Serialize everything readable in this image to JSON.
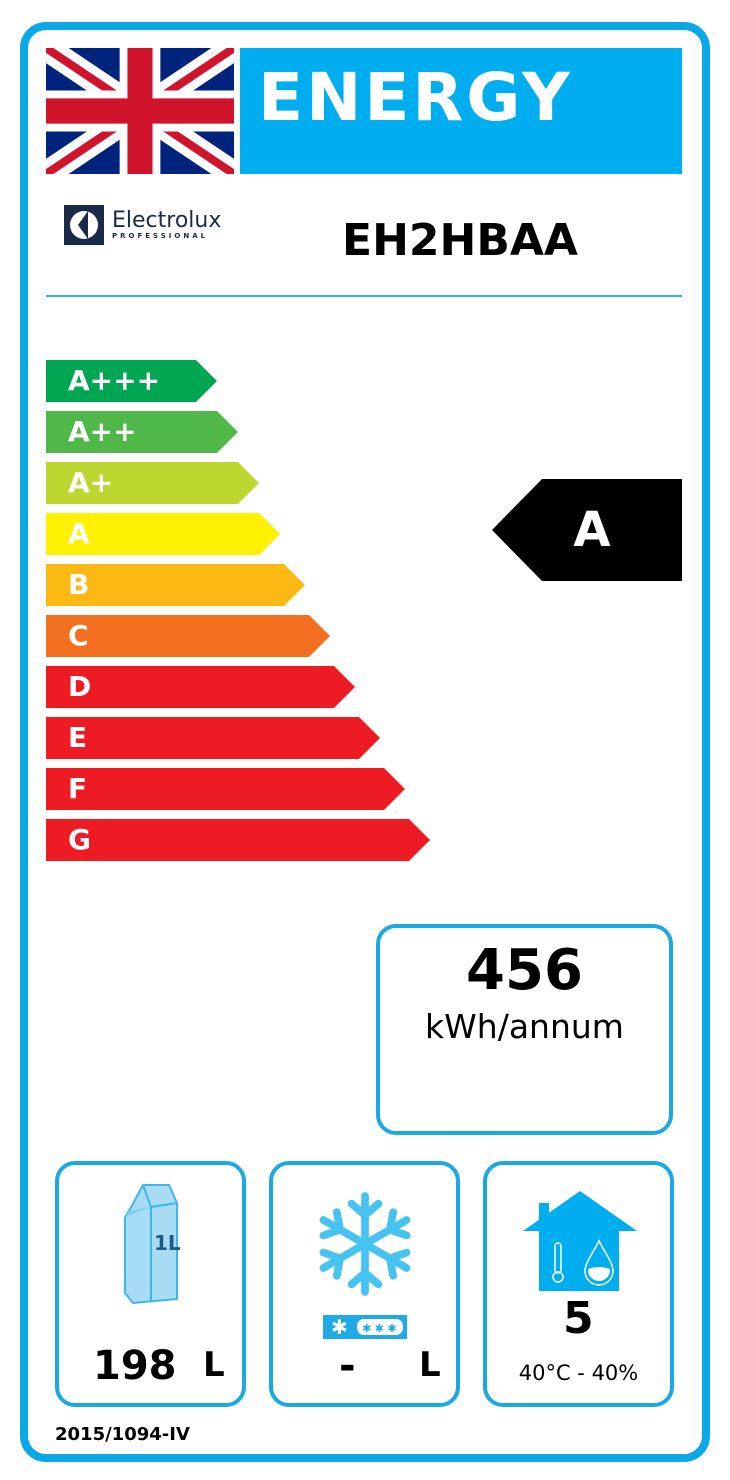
{
  "header": {
    "title": "ENERGY",
    "flag": "union-jack",
    "brand": "Electrolux",
    "brand_sub": "PROFESSIONAL",
    "model": "EH2HBAA"
  },
  "scale": [
    {
      "label": "A+++",
      "color": "#00A651"
    },
    {
      "label": "A++",
      "color": "#50B848"
    },
    {
      "label": "A+",
      "color": "#BED630"
    },
    {
      "label": "A",
      "color": "#FFF200"
    },
    {
      "label": "B",
      "color": "#FDB913"
    },
    {
      "label": "C",
      "color": "#F37021"
    },
    {
      "label": "D",
      "color": "#ED1C24"
    },
    {
      "label": "E",
      "color": "#ED1C24"
    },
    {
      "label": "F",
      "color": "#ED1C24"
    },
    {
      "label": "G",
      "color": "#ED1C24"
    }
  ],
  "rating": "A",
  "consumption": {
    "value": "456",
    "unit": "kWh/annum"
  },
  "storage": {
    "value": "198",
    "unit": "L",
    "icon": "milk-carton-icon",
    "carton_label": "1L"
  },
  "frozen": {
    "value": "-",
    "unit": "L",
    "icon": "snowflake-icon"
  },
  "climate": {
    "class": "5",
    "conditions": "40°C - 40%",
    "icon": "house-climate-icon"
  },
  "regulation": "2015/1094-IV",
  "accent": "#00AEEF"
}
